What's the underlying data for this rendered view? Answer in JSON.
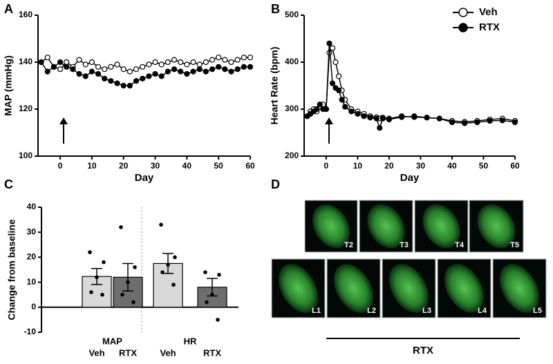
{
  "panel_labels": [
    "A",
    "B",
    "C",
    "D"
  ],
  "chart_data": [
    {
      "type": "line",
      "xlabel": "Day",
      "ylabel": "MAP (mmHg)",
      "x": [
        -6,
        -4,
        -2,
        0,
        2,
        4,
        6,
        8,
        10,
        12,
        14,
        16,
        18,
        20,
        22,
        24,
        26,
        28,
        30,
        32,
        34,
        36,
        38,
        40,
        42,
        44,
        46,
        48,
        50,
        52,
        54,
        56,
        58,
        60
      ],
      "xlim": [
        -7,
        60
      ],
      "xticks": [
        0,
        10,
        20,
        30,
        40,
        50,
        60
      ],
      "ylim": [
        100,
        160
      ],
      "yticks": [
        100,
        120,
        140,
        160
      ],
      "series": [
        {
          "marker": "open",
          "color": "#000000",
          "values": [
            140,
            142,
            138,
            137,
            140,
            138,
            141,
            139,
            140,
            138,
            137,
            138,
            139,
            137,
            136,
            137,
            138,
            139,
            140,
            139,
            140,
            141,
            140,
            139,
            140,
            139,
            140,
            141,
            142,
            141,
            140,
            141,
            142,
            142
          ]
        },
        {
          "marker": "filled",
          "color": "#000000",
          "values": [
            140,
            136,
            138,
            140,
            138,
            137,
            135,
            134,
            136,
            135,
            133,
            132,
            131,
            130,
            130,
            132,
            133,
            134,
            135,
            134,
            136,
            137,
            136,
            135,
            136,
            137,
            136,
            137,
            138,
            137,
            136,
            137,
            138,
            138
          ]
        }
      ]
    },
    {
      "type": "line",
      "xlabel": "Day",
      "ylabel": "Heart Rate (bpm)",
      "x": [
        -6,
        -5,
        -4,
        -3,
        -2,
        -1,
        0,
        1,
        2,
        3,
        4,
        5,
        6,
        8,
        10,
        12,
        14,
        16,
        17,
        18,
        20,
        24,
        28,
        32,
        36,
        40,
        44,
        48,
        52,
        56,
        60
      ],
      "xlim": [
        -7,
        60
      ],
      "xticks": [
        0,
        10,
        20,
        30,
        40,
        50,
        60
      ],
      "ylim": [
        200,
        500
      ],
      "yticks": [
        200,
        300,
        400,
        500
      ],
      "legend": "upper right",
      "series": [
        {
          "name": "Veh",
          "marker": "open",
          "color": "#000000",
          "values": [
            285,
            295,
            300,
            295,
            305,
            310,
            300,
            420,
            430,
            400,
            370,
            340,
            320,
            300,
            295,
            290,
            285,
            283,
            280,
            282,
            280,
            285,
            283,
            282,
            280,
            275,
            273,
            275,
            278,
            280,
            275
          ]
        },
        {
          "name": "RTX",
          "marker": "filled",
          "color": "#000000",
          "values": [
            285,
            290,
            295,
            300,
            310,
            300,
            300,
            440,
            355,
            345,
            340,
            320,
            305,
            295,
            290,
            285,
            282,
            280,
            260,
            280,
            278,
            283,
            285,
            282,
            280,
            272,
            270,
            272,
            275,
            276,
            272
          ]
        }
      ]
    },
    {
      "type": "bar",
      "ylabel": "Change from baseline",
      "groups": [
        "MAP",
        "HR"
      ],
      "categories": [
        "Veh",
        "RTX",
        "Veh",
        "RTX"
      ],
      "values": [
        12.3,
        12,
        17.5,
        8
      ],
      "errors": [
        3.2,
        5.5,
        4,
        3.5
      ],
      "colors": [
        "#d9d9d9",
        "#6e6e6e",
        "#d9d9d9",
        "#6e6e6e"
      ],
      "points": [
        [
          22,
          18,
          12,
          6,
          5
        ],
        [
          32,
          16,
          10,
          5,
          2
        ],
        [
          33,
          20,
          17,
          14,
          9
        ],
        [
          14,
          13,
          5,
          2,
          -5
        ]
      ],
      "ylim": [
        -10,
        40
      ],
      "yticks": [
        -10,
        0,
        10,
        20,
        30,
        40
      ]
    }
  ],
  "panel_d": {
    "images": [
      "T2",
      "T3",
      "T4",
      "T5",
      "L1",
      "L2",
      "L3",
      "L4",
      "L5"
    ],
    "group_label": "RTX"
  }
}
